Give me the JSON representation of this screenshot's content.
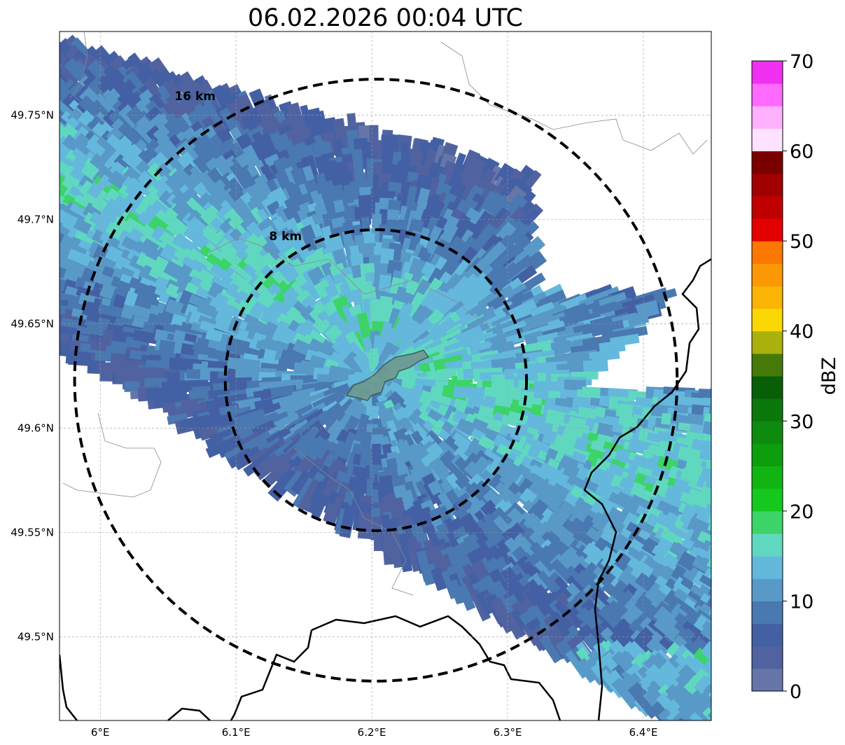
{
  "title": "06.02.2026 00:04 UTC",
  "map": {
    "lon_range": [
      5.97,
      6.45
    ],
    "lat_range": [
      49.46,
      49.79
    ],
    "lat_ticks": [
      {
        "value": 49.5,
        "label": "49.5°N"
      },
      {
        "value": 49.55,
        "label": "49.55°N"
      },
      {
        "value": 49.6,
        "label": "49.6°N"
      },
      {
        "value": 49.65,
        "label": "49.65°N"
      },
      {
        "value": 49.7,
        "label": "49.7°N"
      },
      {
        "value": 49.75,
        "label": "49.75°N"
      }
    ],
    "lon_ticks": [
      {
        "value": 6.0,
        "label": "6°E"
      },
      {
        "value": 6.1,
        "label": "6.1°E"
      },
      {
        "value": 6.2,
        "label": "6.2°E"
      },
      {
        "value": 6.3,
        "label": "6.3°E"
      },
      {
        "value": 6.4,
        "label": "6.4°E"
      }
    ],
    "gridlines": true,
    "center": {
      "lon": 6.203,
      "lat": 49.623
    },
    "range_rings": [
      {
        "radius_km": 8,
        "label": "8 km"
      },
      {
        "radius_km": 16,
        "label": "16 km"
      }
    ],
    "city_marker_color": "#6e9a93"
  },
  "colorbar": {
    "label": "dBZ",
    "min": 0,
    "max": 70,
    "step": 2.5,
    "tick_labels": [
      "0",
      "10",
      "20",
      "30",
      "40",
      "50",
      "60",
      "70"
    ],
    "colors": [
      "#6676a8",
      "#5063a0",
      "#4460a4",
      "#4a78b0",
      "#5899c8",
      "#64b8dc",
      "#60d8c0",
      "#3cd468",
      "#14c81e",
      "#12b414",
      "#0c9e0c",
      "#0e8a0e",
      "#0a780a",
      "#085f08",
      "#457a08",
      "#aab10c",
      "#fbd803",
      "#fbb403",
      "#fb9803",
      "#fb7803",
      "#e20000",
      "#c00000",
      "#a00000",
      "#7a0000",
      "#ffe2ff",
      "#ffb0ff",
      "#ff6aff",
      "#f030f0"
    ]
  }
}
